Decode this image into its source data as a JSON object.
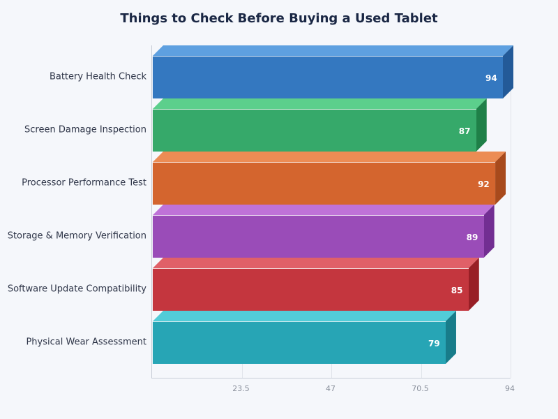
{
  "chart_data": {
    "type": "bar",
    "orientation": "horizontal",
    "title": "Things to Check Before Buying a Used Tablet",
    "xlabel": "",
    "ylabel": "",
    "categories": [
      "Battery Health Check",
      "Screen Damage Inspection",
      "Processor Performance Test",
      "Storage & Memory Verification",
      "Software Update Compatibility",
      "Physical Wear Assessment"
    ],
    "values": [
      94,
      87,
      92,
      89,
      85,
      79
    ],
    "xlim": [
      0,
      94
    ],
    "xticks": [
      "23.5",
      "47",
      "70.5",
      "94"
    ],
    "grid": true,
    "legend": null,
    "style": "3d",
    "colors": [
      {
        "front": "#3478c0",
        "top": "#5ea0e0",
        "side": "#235a98"
      },
      {
        "front": "#36a96a",
        "top": "#5ccf8c",
        "side": "#1f8048"
      },
      {
        "front": "#d4652e",
        "top": "#ec8c54",
        "side": "#a84a1c"
      },
      {
        "front": "#9a4cb8",
        "top": "#bf72d8",
        "side": "#722e92"
      },
      {
        "front": "#c4363e",
        "top": "#e06068",
        "side": "#981f26"
      },
      {
        "front": "#27a5b5",
        "top": "#52ccd8",
        "side": "#187c8a"
      }
    ]
  }
}
